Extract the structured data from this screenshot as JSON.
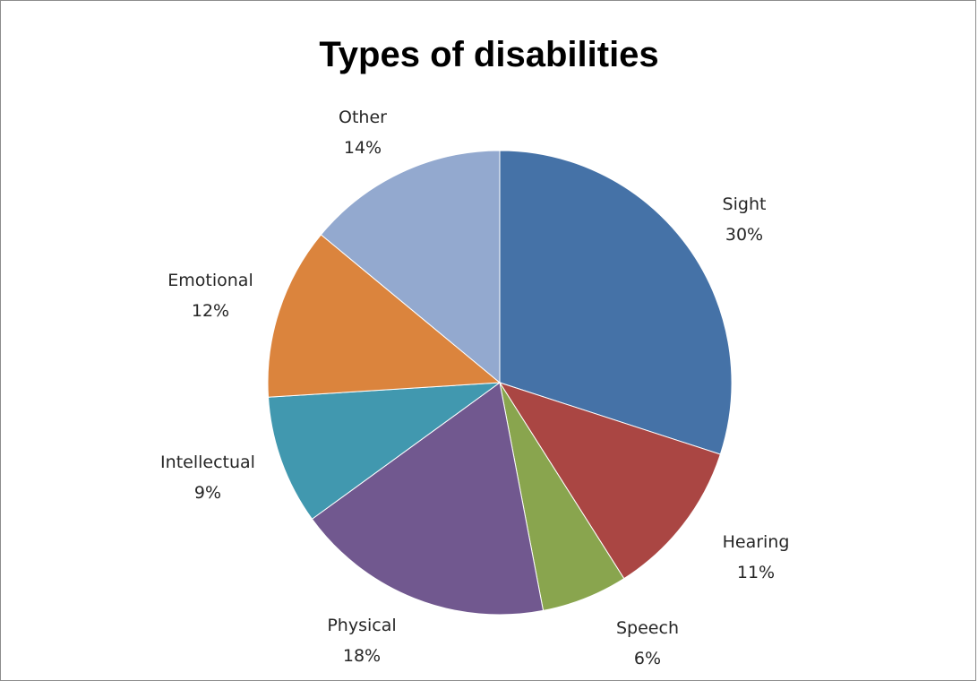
{
  "chart_data": {
    "type": "pie",
    "title": "Types of disabilities",
    "slices": [
      {
        "label": "Sight",
        "value": 30,
        "display": "30%",
        "color": "#4572a7"
      },
      {
        "label": "Hearing",
        "value": 11,
        "display": "11%",
        "color": "#aa4643"
      },
      {
        "label": "Speech",
        "value": 6,
        "display": "6%",
        "color": "#89a54e"
      },
      {
        "label": "Physical",
        "value": 18,
        "display": "18%",
        "color": "#71588f"
      },
      {
        "label": "Intellectual",
        "value": 9,
        "display": "9%",
        "color": "#4198af"
      },
      {
        "label": "Emotional",
        "value": 12,
        "display": "12%",
        "color": "#db843d"
      },
      {
        "label": "Other",
        "value": 14,
        "display": "14%",
        "color": "#93a9cf"
      }
    ],
    "start_angle": "12 o'clock",
    "direction": "clockwise",
    "legend": "none",
    "data_labels": "outside, category name and percentage"
  }
}
